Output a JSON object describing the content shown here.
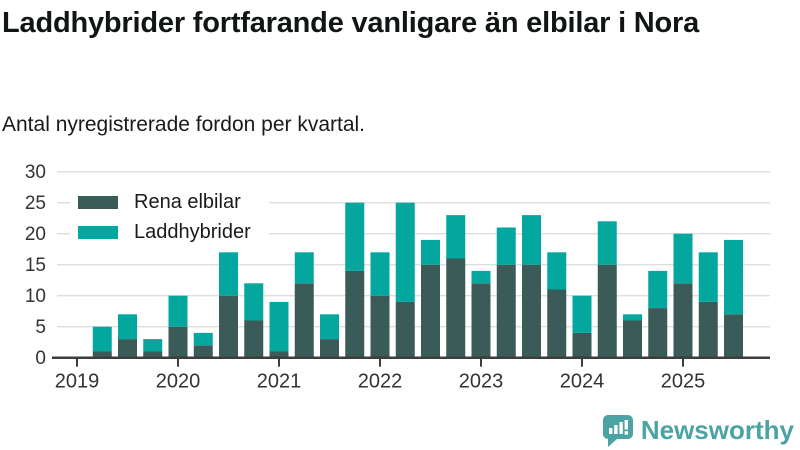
{
  "header": {
    "title": "Laddhybrider fortfarande vanligare än elbilar i Nora",
    "subtitle": "Antal nyregistrerade fordon per kvartal."
  },
  "chart_data": {
    "type": "bar",
    "stacked": true,
    "title": "Laddhybrider fortfarande vanligare än elbilar i Nora",
    "subtitle": "Antal nyregistrerade fordon per kvartal.",
    "categories": [
      "2019 Q1",
      "2019 Q2",
      "2019 Q3",
      "2019 Q4",
      "2020 Q1",
      "2020 Q2",
      "2020 Q3",
      "2020 Q4",
      "2021 Q1",
      "2021 Q2",
      "2021 Q3",
      "2021 Q4",
      "2022 Q1",
      "2022 Q2",
      "2022 Q3",
      "2022 Q4",
      "2023 Q1",
      "2023 Q2",
      "2023 Q3",
      "2023 Q4",
      "2024 Q1",
      "2024 Q2",
      "2024 Q3",
      "2024 Q4",
      "2025 Q1",
      "2025 Q2",
      "2025 Q3"
    ],
    "series": [
      {
        "name": "Rena elbilar",
        "color": "#3a5b57",
        "values": [
          0,
          1,
          3,
          1,
          5,
          2,
          10,
          6,
          1,
          12,
          3,
          14,
          10,
          9,
          15,
          16,
          12,
          15,
          15,
          11,
          4,
          15,
          6,
          8,
          12,
          9,
          7
        ]
      },
      {
        "name": "Laddhybrider",
        "color": "#04a79e",
        "values": [
          0,
          4,
          4,
          2,
          5,
          2,
          7,
          6,
          8,
          5,
          4,
          11,
          7,
          16,
          4,
          7,
          2,
          6,
          8,
          6,
          6,
          7,
          1,
          6,
          8,
          8,
          12
        ]
      }
    ],
    "xlabel": "",
    "ylabel": "",
    "x_tick_labels": [
      "2019",
      "2020",
      "2021",
      "2022",
      "2023",
      "2024",
      "2025"
    ],
    "yticks": [
      0,
      5,
      10,
      15,
      20,
      25,
      30
    ],
    "ylim": [
      0,
      30
    ],
    "grid": true,
    "legend_position": "top-left",
    "axis_color": "#3d3d3d",
    "grid_color": "#dedede",
    "tick_label_color": "#333333"
  },
  "footer": {
    "brand": "Newsworthy",
    "brand_color": "#4ba3a3",
    "logo_icon": "bar-chart-speech-bubble-icon"
  }
}
